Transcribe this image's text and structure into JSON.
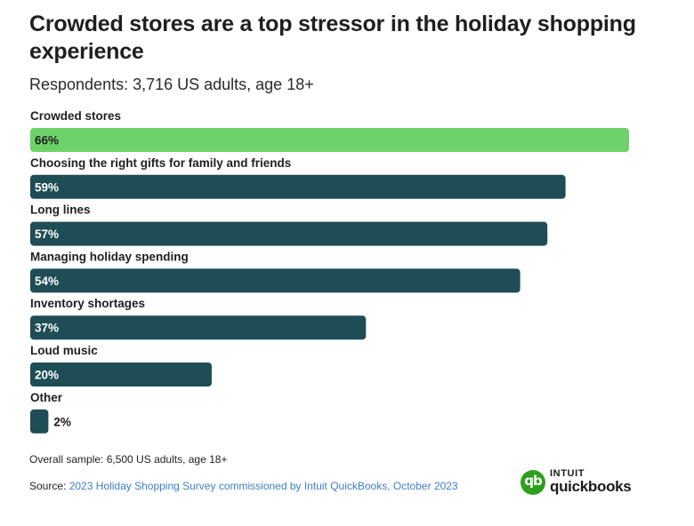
{
  "title": "Crowded stores are a top stressor in the holiday shopping experience",
  "subtitle": "Respondents: 3,716 US adults, age 18+",
  "footnote": "Overall sample: 6,500 US adults, age 18+",
  "source": {
    "prefix": "Source: ",
    "link_text": "2023 Holiday Shopping Survey commissioned by Intuit QuickBooks, October 2023"
  },
  "logo": {
    "brand_top": "INTUIT",
    "brand_name": "quickbooks",
    "mark": "qb"
  },
  "colors": {
    "highlight": "#6ed26a",
    "bar": "#1e4d55",
    "label_on_bar": "#ffffff",
    "label_outside": "#1a1a1a",
    "link": "#3d7fc4"
  },
  "chart_data": {
    "type": "bar",
    "orientation": "horizontal",
    "categories": [
      "Crowded stores",
      "Choosing the right gifts for family and friends",
      "Long lines",
      "Managing holiday spending",
      "Inventory shortages",
      "Loud music",
      "Other"
    ],
    "values": [
      66,
      59,
      57,
      54,
      37,
      20,
      2
    ],
    "value_labels": [
      "66%",
      "59%",
      "57%",
      "54%",
      "37%",
      "20%",
      "2%"
    ],
    "unit": "%",
    "highlighted_category": "Crowded stores",
    "xlim": [
      0,
      66
    ],
    "grid": false,
    "legend": "none"
  }
}
